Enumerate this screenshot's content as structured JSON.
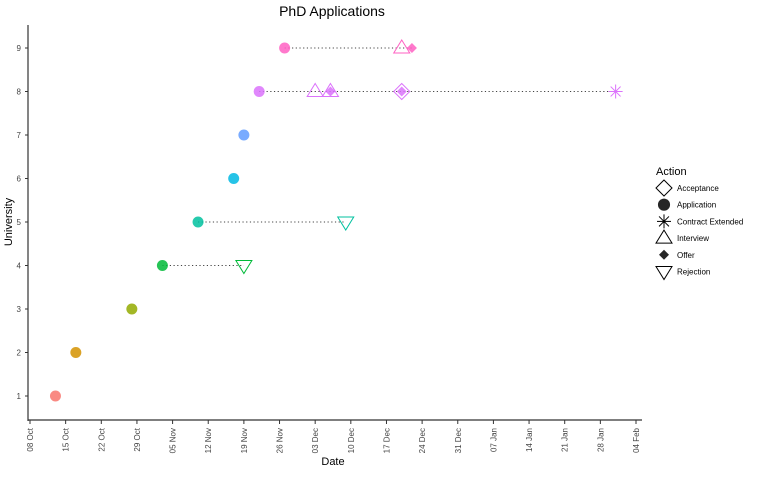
{
  "chart_data": {
    "type": "scatter",
    "title": "PhD Applications",
    "xlabel": "Date",
    "ylabel": "University",
    "xlim": [
      "10-08",
      "02-04"
    ],
    "ylim": [
      0.45,
      9.55
    ],
    "x_ticks": [
      "08 Oct",
      "15 Oct",
      "22 Oct",
      "29 Oct",
      "05 Nov",
      "12 Nov",
      "19 Nov",
      "26 Nov",
      "03 Dec",
      "10 Dec",
      "17 Dec",
      "24 Dec",
      "31 Dec",
      "07 Jan",
      "14 Jan",
      "21 Jan",
      "28 Jan",
      "04 Feb"
    ],
    "y_ticks": [
      "1",
      "2",
      "3",
      "4",
      "5",
      "6",
      "7",
      "8",
      "9"
    ],
    "grid": false,
    "legend": {
      "title": "Action",
      "placement": "right",
      "entries": [
        {
          "label": "Acceptance",
          "shape": "diamond-open"
        },
        {
          "label": "Application",
          "shape": "circle-filled"
        },
        {
          "label": "Contract Extended",
          "shape": "asterisk"
        },
        {
          "label": "Interview",
          "shape": "triangle-up-open"
        },
        {
          "label": "Offer",
          "shape": "diamond-filled"
        },
        {
          "label": "Rejection",
          "shape": "triangle-down-open"
        }
      ]
    },
    "series": [
      {
        "university": 1,
        "color": "#F8766D",
        "points": [
          {
            "date": "10-13",
            "action": "Application"
          }
        ]
      },
      {
        "university": 2,
        "color": "#D39200",
        "points": [
          {
            "date": "10-17",
            "action": "Application"
          }
        ]
      },
      {
        "university": 3,
        "color": "#93AA00",
        "points": [
          {
            "date": "10-28",
            "action": "Application"
          }
        ]
      },
      {
        "university": 4,
        "color": "#00BA38",
        "points": [
          {
            "date": "11-03",
            "action": "Application"
          },
          {
            "date": "11-19",
            "action": "Rejection"
          }
        ]
      },
      {
        "university": 5,
        "color": "#00C19F",
        "points": [
          {
            "date": "11-10",
            "action": "Application"
          },
          {
            "date": "12-09",
            "action": "Rejection"
          }
        ]
      },
      {
        "university": 6,
        "color": "#00B9E3",
        "points": [
          {
            "date": "11-17",
            "action": "Application"
          }
        ]
      },
      {
        "university": 7,
        "color": "#619CFF",
        "points": [
          {
            "date": "11-19",
            "action": "Application"
          }
        ]
      },
      {
        "university": 8,
        "color": "#DB72FB",
        "points": [
          {
            "date": "11-22",
            "action": "Application"
          },
          {
            "date": "12-03",
            "action": "Interview"
          },
          {
            "date": "12-06",
            "action": "Interview"
          },
          {
            "date": "12-06",
            "action": "Offer"
          },
          {
            "date": "12-20",
            "action": "Acceptance"
          },
          {
            "date": "12-20",
            "action": "Offer"
          },
          {
            "date": "01-31",
            "action": "Contract Extended"
          }
        ]
      },
      {
        "university": 9,
        "color": "#FF61C3",
        "points": [
          {
            "date": "11-27",
            "action": "Application"
          },
          {
            "date": "12-20",
            "action": "Interview"
          },
          {
            "date": "12-22",
            "action": "Offer"
          }
        ]
      }
    ]
  }
}
